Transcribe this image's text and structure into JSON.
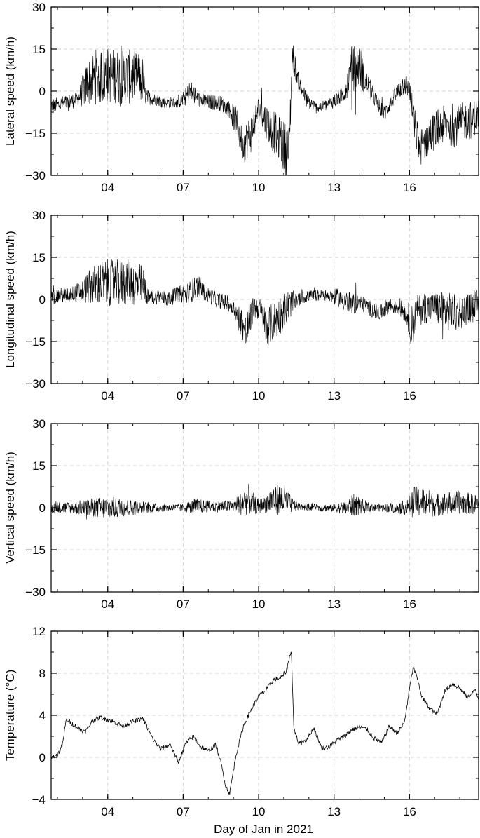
{
  "chart_data": [
    {
      "type": "line",
      "ylabel": "Lateral speed (km/h)",
      "xlabel": "",
      "x_range": [
        "2021-01-01T18:00",
        "2021-01-18T18:00"
      ],
      "ylim": [
        -30,
        30
      ],
      "yticks": [
        "30",
        "15",
        "0",
        "−15",
        "−30"
      ],
      "xticks": [
        "04",
        "07",
        "10",
        "13",
        "16"
      ],
      "grid": true,
      "series": [
        {
          "x_day": [
            1.75,
            2.0,
            2.4,
            2.8,
            3.2,
            3.5,
            3.8,
            4.2,
            4.6,
            5.0,
            5.4,
            5.5,
            5.9,
            6.3,
            6.7,
            7.0,
            7.3,
            7.6,
            8.0,
            8.4,
            8.8,
            9.1,
            9.4,
            9.7,
            10.0,
            10.4,
            10.8,
            11.1,
            11.2,
            11.35,
            11.6,
            11.9,
            12.3,
            12.7,
            13.1,
            13.4,
            13.7,
            14.0,
            14.3,
            14.7,
            15.0,
            15.4,
            15.8,
            16.0,
            16.2,
            16.4,
            16.7,
            17.0,
            17.4,
            17.8,
            18.1,
            18.5,
            18.75
          ],
          "y_center": [
            -5,
            -5,
            -4,
            -3,
            3,
            5,
            6,
            5.5,
            5,
            5,
            4,
            -2,
            -3,
            -4,
            -4,
            -3,
            0,
            -3,
            -4,
            -4,
            -6,
            -11,
            -19,
            -15,
            -6,
            -12,
            -17,
            -21,
            -22,
            13,
            3,
            -3,
            -6,
            -5,
            -3,
            -1,
            8,
            9,
            3,
            -4,
            -8,
            -2,
            3,
            0,
            -12,
            -20,
            -17,
            -14,
            -12,
            -13,
            -11,
            -10,
            -8
          ],
          "y_spread": [
            2,
            2,
            2,
            2,
            6,
            7,
            8,
            7,
            7,
            7,
            6,
            2,
            1.5,
            1.5,
            1.5,
            2,
            3,
            2,
            2,
            2,
            2,
            4,
            5,
            5,
            3,
            5,
            6,
            7,
            7,
            4,
            2,
            2,
            1.5,
            1.5,
            2,
            2,
            6,
            6,
            3,
            2,
            2,
            2,
            3,
            3,
            5,
            5,
            5,
            5,
            5,
            5,
            5,
            5,
            4
          ]
        }
      ]
    },
    {
      "type": "line",
      "ylabel": "Longitudinal speed (km/h)",
      "xlabel": "",
      "x_range": [
        "2021-01-01T18:00",
        "2021-01-18T18:00"
      ],
      "ylim": [
        -30,
        30
      ],
      "yticks": [
        "30",
        "15",
        "0",
        "−15",
        "−30"
      ],
      "xticks": [
        "04",
        "07",
        "10",
        "13",
        "16"
      ],
      "grid": true,
      "series": [
        {
          "x_day": [
            1.75,
            2.2,
            2.6,
            3.0,
            3.4,
            3.8,
            4.2,
            4.6,
            5.0,
            5.4,
            5.6,
            6.0,
            6.4,
            6.8,
            7.2,
            7.6,
            7.9,
            8.3,
            8.7,
            9.0,
            9.3,
            9.5,
            9.8,
            10.0,
            10.3,
            10.6,
            10.9,
            11.2,
            11.5,
            11.9,
            12.3,
            12.7,
            13.0,
            13.4,
            13.7,
            14.0,
            14.4,
            14.8,
            15.2,
            15.6,
            15.9,
            16.1,
            16.3,
            16.6,
            17.0,
            17.4,
            17.8,
            18.2,
            18.75
          ],
          "y_center": [
            1,
            1.5,
            2,
            3,
            5,
            6,
            6,
            6,
            6,
            5,
            1,
            1,
            0,
            2,
            2,
            5,
            2,
            0,
            -1,
            -3,
            -8,
            -12,
            -3,
            -3,
            -10,
            -8,
            -5,
            -2,
            0,
            1,
            1.5,
            1.5,
            1,
            0,
            -2,
            -1,
            -3,
            -5,
            -2,
            -3,
            -5,
            -10,
            -4,
            -3,
            -3,
            -4,
            -5,
            -4,
            -2
          ],
          "y_spread": [
            2,
            2,
            2,
            3,
            5,
            6,
            6,
            6,
            6,
            5,
            2,
            2,
            2,
            2,
            3,
            3,
            2,
            2,
            2,
            2,
            4,
            5,
            3,
            3,
            5,
            5,
            5,
            4,
            2,
            1.5,
            1.5,
            1.5,
            2,
            3,
            3,
            2,
            2,
            2,
            2,
            2,
            3,
            6,
            4,
            4,
            4,
            5,
            5,
            4,
            4
          ]
        }
      ]
    },
    {
      "type": "line",
      "ylabel": "Vertical speed (km/h)",
      "xlabel": "",
      "x_range": [
        "2021-01-01T18:00",
        "2021-01-18T18:00"
      ],
      "ylim": [
        -30,
        30
      ],
      "yticks": [
        "30",
        "15",
        "0",
        "−15",
        "−30"
      ],
      "xticks": [
        "04",
        "07",
        "10",
        "13",
        "16"
      ],
      "grid": true,
      "series": [
        {
          "x_day": [
            1.75,
            2.5,
            3.0,
            3.5,
            4.0,
            4.5,
            5.0,
            5.5,
            6.0,
            6.5,
            7.0,
            7.5,
            8.0,
            8.5,
            9.0,
            9.3,
            9.6,
            9.9,
            10.2,
            10.6,
            11.0,
            11.3,
            11.6,
            12.0,
            12.5,
            13.0,
            13.5,
            13.8,
            14.1,
            14.5,
            15.0,
            15.5,
            15.9,
            16.2,
            16.6,
            17.0,
            17.5,
            18.0,
            18.75
          ],
          "y_center": [
            0,
            0,
            0,
            0,
            0,
            0,
            0,
            0,
            0,
            0,
            0,
            0.5,
            0.5,
            0.5,
            0.5,
            1.5,
            3,
            0.5,
            1,
            3,
            3,
            1,
            0.5,
            0.5,
            0,
            0,
            0,
            1,
            0.5,
            0,
            0,
            0,
            0,
            2,
            2,
            1,
            1.5,
            2,
            1
          ],
          "y_spread": [
            1.5,
            1.5,
            2,
            2.5,
            3,
            2.5,
            2,
            1.5,
            1,
            1,
            1,
            2,
            1.5,
            1.5,
            1.5,
            3,
            4,
            2,
            2,
            4,
            4,
            2,
            1,
            1,
            1,
            1,
            2,
            3,
            2,
            1,
            1,
            1.5,
            2,
            4,
            4,
            3,
            3,
            3,
            2.5
          ]
        }
      ]
    },
    {
      "type": "line",
      "ylabel": "Temperature (°C)",
      "xlabel": "Day of Jan in 2021",
      "x_range": [
        "2021-01-01T18:00",
        "2021-01-18T18:00"
      ],
      "ylim": [
        -4,
        12
      ],
      "yticks": [
        "12",
        "8",
        "4",
        "0",
        "−4"
      ],
      "xticks": [
        "04",
        "07",
        "10",
        "13",
        "16"
      ],
      "grid": true,
      "series": [
        {
          "x_day": [
            1.75,
            2.0,
            2.2,
            2.35,
            2.7,
            3.1,
            3.4,
            3.7,
            4.0,
            4.3,
            4.6,
            5.0,
            5.4,
            5.5,
            5.8,
            6.1,
            6.5,
            6.8,
            7.1,
            7.4,
            7.7,
            8.0,
            8.3,
            8.5,
            8.7,
            8.85,
            9.1,
            9.4,
            9.7,
            10.0,
            10.3,
            10.6,
            10.9,
            11.1,
            11.2,
            11.3,
            11.4,
            11.6,
            11.9,
            12.2,
            12.5,
            12.8,
            13.1,
            13.4,
            13.7,
            14.0,
            14.3,
            14.6,
            14.9,
            15.2,
            15.5,
            15.8,
            16.0,
            16.15,
            16.3,
            16.5,
            16.8,
            17.1,
            17.4,
            17.7,
            18.0,
            18.3,
            18.6,
            18.75
          ],
          "y": [
            0,
            0.2,
            1.2,
            3.6,
            3.0,
            2.4,
            3.5,
            3.8,
            3.6,
            3.3,
            3.0,
            3.4,
            3.7,
            3.2,
            1.7,
            0.8,
            1.2,
            -0.5,
            1.3,
            2.0,
            1.0,
            0.6,
            1.2,
            -0.5,
            -2.8,
            -3.4,
            0.2,
            3.0,
            4.5,
            5.8,
            6.4,
            7.4,
            7.6,
            8.2,
            9.2,
            10.3,
            2.8,
            1.3,
            1.7,
            2.8,
            0.9,
            1.0,
            1.6,
            2.0,
            2.6,
            2.9,
            2.7,
            1.8,
            1.4,
            3.0,
            2.3,
            3.3,
            6.5,
            8.6,
            7.6,
            5.7,
            4.7,
            4.1,
            6.3,
            7.0,
            6.6,
            5.7,
            6.4,
            5.5
          ]
        }
      ]
    }
  ]
}
